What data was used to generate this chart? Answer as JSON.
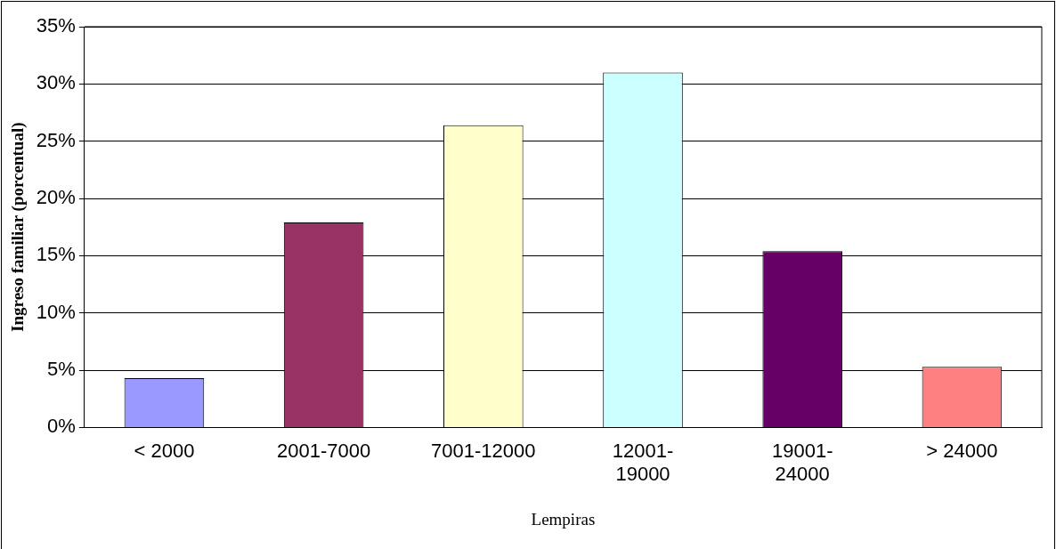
{
  "chart_data": {
    "type": "bar",
    "xlabel": "Lempiras",
    "ylabel": "Ingreso familiar (porcentual)",
    "categories": [
      "< 2000",
      "2001-7000",
      "7001-12000",
      "12001-\n19000",
      "19001-\n24000",
      "> 24000"
    ],
    "values": [
      4.3,
      17.9,
      26.4,
      31.0,
      15.4,
      5.3
    ],
    "colors": [
      "#9999ff",
      "#993366",
      "#ffffcc",
      "#ccffff",
      "#660066",
      "#ff8080"
    ],
    "ylim": [
      0,
      35
    ],
    "yticks": [
      {
        "value": 0,
        "label": "0%"
      },
      {
        "value": 5,
        "label": "5%"
      },
      {
        "value": 10,
        "label": "10%"
      },
      {
        "value": 15,
        "label": "15%"
      },
      {
        "value": 20,
        "label": "20%"
      },
      {
        "value": 25,
        "label": "25%"
      },
      {
        "value": 30,
        "label": "30%"
      },
      {
        "value": 35,
        "label": "35%"
      }
    ],
    "grid": "y",
    "legend": false
  }
}
